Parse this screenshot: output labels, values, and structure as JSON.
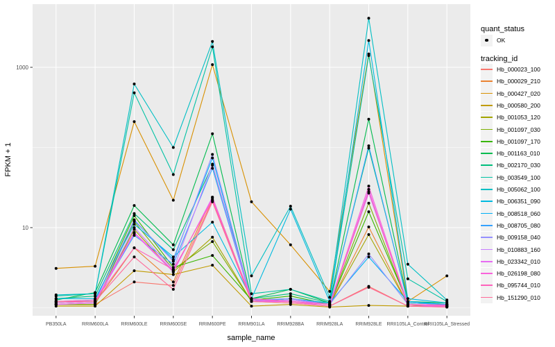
{
  "theme": {
    "background": "#FFFFFF",
    "panel_bg": "#EBEBEB",
    "grid": "#FFFFFF",
    "tick_mark": "#333333",
    "tick_text": "#4D4D4D",
    "axis_title": "#000000",
    "legend_key_bg": "#F2F2F2",
    "point_color": "#000000"
  },
  "legend": {
    "quant_status": {
      "title": "quant_status",
      "items": [
        {
          "label": "OK",
          "marker": "point",
          "color": "#000000"
        }
      ]
    },
    "tracking_id": {
      "title": "tracking_id"
    }
  },
  "chart_data": {
    "type": "line",
    "title": "",
    "xlabel": "sample_name",
    "ylabel": "FPKM + 1",
    "y_scale": "log10",
    "ylim": [
      0.8,
      6500
    ],
    "grid": true,
    "legend_position": "right",
    "y_ticks": [
      {
        "value": 10,
        "label": "10"
      },
      {
        "value": 1000,
        "label": "1000"
      }
    ],
    "y_minor_ticks": [
      1,
      100
    ],
    "categories": [
      "PB350LA",
      "RRIM600LA",
      "RRIM600LE",
      "RRIM600SE",
      "RRIM600PE",
      "RRIM901LA",
      "RRIM928BA",
      "RRIM928LA",
      "RRIM928LE",
      "RRII105LA_Control",
      "RRII105LA_Stressed"
    ],
    "point_marker": "OK",
    "series": [
      {
        "name": "Hb_000023_100",
        "color": "#F8766D",
        "values": [
          1.1,
          1.1,
          2.1,
          1.9,
          22,
          1.2,
          1.15,
          1.05,
          1.85,
          1.05,
          1.02
        ]
      },
      {
        "name": "Hb_000029_210",
        "color": "#EA8331",
        "values": [
          1.1,
          1.15,
          5.6,
          2.1,
          24,
          1.25,
          1.2,
          1.1,
          10.2,
          1.1,
          1.05
        ]
      },
      {
        "name": "Hb_000427_020",
        "color": "#D89000",
        "values": [
          3.1,
          3.3,
          210,
          22,
          1080,
          21,
          6.1,
          1.6,
          1470,
          1.2,
          2.5
        ]
      },
      {
        "name": "Hb_000580_200",
        "color": "#C09B00",
        "values": [
          1.05,
          1.05,
          2.9,
          2.6,
          3.4,
          1.05,
          1.1,
          1.02,
          1.07,
          1.05,
          1.1
        ]
      },
      {
        "name": "Hb_001053_120",
        "color": "#A3A500",
        "values": [
          1.1,
          1.1,
          9.5,
          2.8,
          7.6,
          1.2,
          1.3,
          1.1,
          8.2,
          1.1,
          1.05
        ]
      },
      {
        "name": "Hb_001097_030",
        "color": "#7CAE00",
        "values": [
          1.1,
          1.1,
          11.9,
          3.0,
          6.7,
          1.2,
          1.3,
          1.1,
          20.2,
          1.1,
          1.05
        ]
      },
      {
        "name": "Hb_001097_170",
        "color": "#39B600",
        "values": [
          1.15,
          1.2,
          14.1,
          3.2,
          4.5,
          1.25,
          1.4,
          1.1,
          15.8,
          1.15,
          1.1
        ]
      },
      {
        "name": "Hb_001163_010",
        "color": "#00BB4E",
        "values": [
          1.25,
          1.55,
          18.9,
          6.1,
          148,
          1.3,
          1.7,
          1.15,
          225,
          1.2,
          1.15
        ]
      },
      {
        "name": "Hb_002170_030",
        "color": "#00BF7D",
        "values": [
          1.3,
          1.4,
          15,
          5.3,
          60,
          1.3,
          1.5,
          1.15,
          98,
          1.2,
          1.1
        ]
      },
      {
        "name": "Hb_003549_100",
        "color": "#00C1A3",
        "values": [
          1.4,
          1.5,
          480,
          46,
          1800,
          1.5,
          1.7,
          1.2,
          1400,
          2.3,
          1.2
        ]
      },
      {
        "name": "Hb_005062_100",
        "color": "#00BFC4",
        "values": [
          1.45,
          1.5,
          620,
          100,
          2100,
          2.5,
          18.5,
          1.35,
          4100,
          3.5,
          1.25
        ]
      },
      {
        "name": "Hb_006351_090",
        "color": "#00BAE0",
        "values": [
          1.3,
          1.3,
          11,
          4.3,
          11.7,
          1.3,
          17,
          1.2,
          2160,
          1.3,
          1.15
        ]
      },
      {
        "name": "Hb_008518_060",
        "color": "#00B0F6",
        "values": [
          1.2,
          1.25,
          12.2,
          4.0,
          74,
          1.25,
          1.3,
          1.15,
          4.3,
          1.2,
          1.1
        ]
      },
      {
        "name": "Hb_008705_080",
        "color": "#35A2FF",
        "values": [
          1.2,
          1.2,
          8.0,
          3.5,
          55,
          1.2,
          1.3,
          1.1,
          105,
          1.15,
          1.1
        ]
      },
      {
        "name": "Hb_009158_040",
        "color": "#9590FF",
        "values": [
          1.15,
          1.2,
          12.5,
          3.8,
          82,
          1.25,
          1.3,
          1.1,
          4.7,
          1.1,
          1.05
        ]
      },
      {
        "name": "Hb_010883_160",
        "color": "#C77CFF",
        "values": [
          1.1,
          1.15,
          10,
          3.0,
          62,
          1.2,
          1.25,
          1.1,
          27,
          1.1,
          1.05
        ]
      },
      {
        "name": "Hb_023342_010",
        "color": "#E76BF3",
        "values": [
          1.1,
          1.15,
          8.5,
          2.8,
          24,
          1.2,
          1.2,
          1.05,
          30,
          1.05,
          1.05
        ]
      },
      {
        "name": "Hb_026198_080",
        "color": "#FA62DB",
        "values": [
          1.15,
          1.2,
          8.7,
          2.9,
          23,
          1.25,
          1.2,
          1.1,
          33,
          1.1,
          1.05
        ]
      },
      {
        "name": "Hb_095744_010",
        "color": "#FF62BC",
        "values": [
          1.2,
          1.25,
          5.6,
          3.0,
          22,
          1.3,
          1.2,
          1.1,
          28,
          1.1,
          1.08
        ]
      },
      {
        "name": "Hb_151290_010",
        "color": "#FF6A98",
        "values": [
          1.2,
          1.2,
          4.3,
          1.7,
          21,
          1.2,
          1.15,
          1.05,
          1.8,
          1.05,
          1.02
        ]
      }
    ]
  }
}
